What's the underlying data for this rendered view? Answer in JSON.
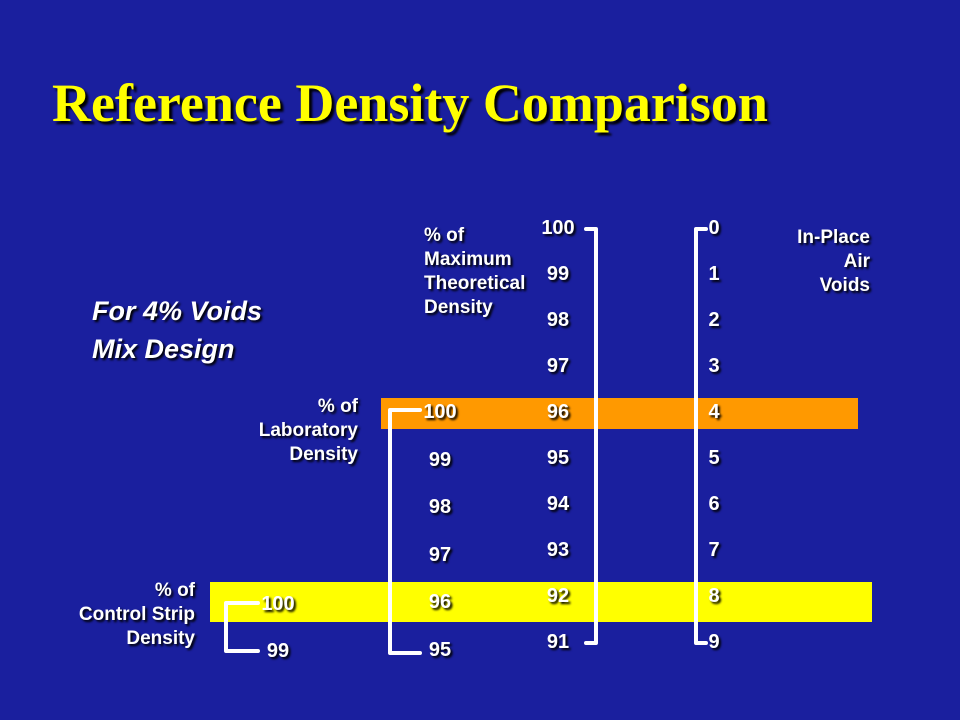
{
  "title": "Reference Density Comparison",
  "note": [
    "For 4% Voids",
    "Mix Design"
  ],
  "labels": {
    "mtd": [
      "% of",
      "Maximum",
      "Theoretical",
      "Density"
    ],
    "voids": [
      "In-Place",
      "Air",
      "Voids"
    ],
    "lab": [
      "% of",
      "Laboratory",
      "Density"
    ],
    "cs": [
      "% of",
      "Control Strip",
      "Density"
    ]
  },
  "colors": {
    "background": "#1a1f9e",
    "title": "#ffff00",
    "lab_band": "#ff9900",
    "control_strip_band": "#ffff00"
  },
  "scales": {
    "mtd": [
      "100",
      "99",
      "98",
      "97",
      "96",
      "95",
      "94",
      "93",
      "92",
      "91"
    ],
    "voids": [
      "0",
      "1",
      "2",
      "3",
      "4",
      "5",
      "6",
      "7",
      "8",
      "9"
    ],
    "lab": [
      "100",
      "99",
      "98",
      "97",
      "96",
      "95"
    ],
    "cs": [
      "100",
      "99"
    ]
  }
}
